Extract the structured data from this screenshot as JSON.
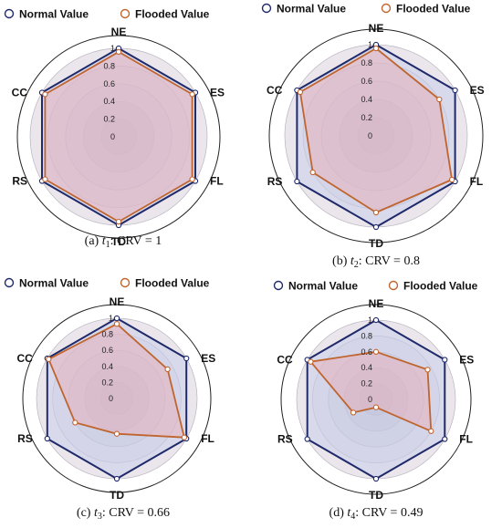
{
  "chart_data": [
    {
      "type": "radar",
      "caption_letter": "(a)",
      "caption_symbol": "t",
      "caption_sub": "1",
      "caption_rest": ": CRV = 1",
      "axes": [
        "NE",
        "ES",
        "FL",
        "TD",
        "RS",
        "CC"
      ],
      "ticks": [
        "0",
        "0.2",
        "0.4",
        "0.6",
        "0.8",
        "1"
      ],
      "rlim": [
        0,
        1
      ],
      "series": [
        {
          "name": "Normal Value",
          "color": "#1f2a6b",
          "values": [
            1,
            1,
            1,
            1,
            1,
            1
          ]
        },
        {
          "name": "Flooded Value",
          "color": "#c0652f",
          "values": [
            0.96,
            0.96,
            0.96,
            0.96,
            0.96,
            0.96
          ]
        }
      ]
    },
    {
      "type": "radar",
      "caption_letter": "(b)",
      "caption_symbol": "t",
      "caption_sub": "2",
      "caption_rest": ": CRV = 0.8",
      "axes": [
        "NE",
        "ES",
        "FL",
        "TD",
        "RS",
        "CC"
      ],
      "ticks": [
        "0",
        "0.2",
        "0.4",
        "0.6",
        "0.8",
        "1"
      ],
      "rlim": [
        0,
        1
      ],
      "series": [
        {
          "name": "Normal Value",
          "color": "#1f2a6b",
          "values": [
            1,
            1,
            1,
            1,
            1,
            1
          ]
        },
        {
          "name": "Flooded Value",
          "color": "#c0652f",
          "values": [
            0.96,
            0.8,
            0.96,
            0.84,
            0.8,
            0.96
          ]
        }
      ]
    },
    {
      "type": "radar",
      "caption_letter": "(c)",
      "caption_symbol": "t",
      "caption_sub": "3",
      "caption_rest": ": CRV = 0.66",
      "axes": [
        "NE",
        "ES",
        "FL",
        "TD",
        "RS",
        "CC"
      ],
      "ticks": [
        "0",
        "0.2",
        "0.4",
        "0.6",
        "0.8",
        "1"
      ],
      "rlim": [
        0,
        1
      ],
      "series": [
        {
          "name": "Normal Value",
          "color": "#1f2a6b",
          "values": [
            1,
            1,
            1,
            1,
            1,
            1
          ]
        },
        {
          "name": "Flooded Value",
          "color": "#c0652f",
          "values": [
            0.93,
            0.73,
            0.97,
            0.44,
            0.6,
            0.98
          ]
        }
      ]
    },
    {
      "type": "radar",
      "caption_letter": "(d)",
      "caption_symbol": "t",
      "caption_sub": "4",
      "caption_rest": ": CRV = 0.49",
      "axes": [
        "NE",
        "ES",
        "FL",
        "TD",
        "RS",
        "CC"
      ],
      "ticks": [
        "0",
        "0.2",
        "0.4",
        "0.6",
        "0.8",
        "1"
      ],
      "rlim": [
        0,
        1
      ],
      "series": [
        {
          "name": "Normal Value",
          "color": "#1f2a6b",
          "values": [
            1,
            1,
            1,
            1,
            1,
            1
          ]
        },
        {
          "name": "Flooded Value",
          "color": "#c0652f",
          "values": [
            0.6,
            0.75,
            0.8,
            0.1,
            0.33,
            0.95
          ]
        }
      ]
    }
  ]
}
